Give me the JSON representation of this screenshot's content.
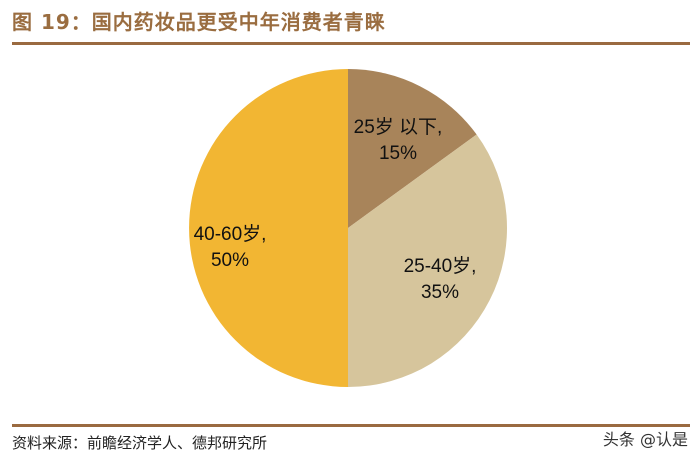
{
  "header": {
    "title": "图 19：国内药妆品更受中年消费者青睐"
  },
  "footer": {
    "source": "资料来源：前瞻经济学人、德邦研究所",
    "watermark": "头条 @认是"
  },
  "chart_data": {
    "type": "pie",
    "title": "图 19：国内药妆品更受中年消费者青睐",
    "start": "12 o'clock",
    "direction": "clockwise",
    "slices": [
      {
        "label": "25岁 以下,",
        "pct_label": "15%",
        "value": 15,
        "color": "#a8845a"
      },
      {
        "label": "25-40岁,",
        "pct_label": "35%",
        "value": 35,
        "color": "#d6c59c"
      },
      {
        "label": "40-60岁,",
        "pct_label": "50%",
        "value": 50,
        "color": "#f2b633"
      }
    ]
  }
}
